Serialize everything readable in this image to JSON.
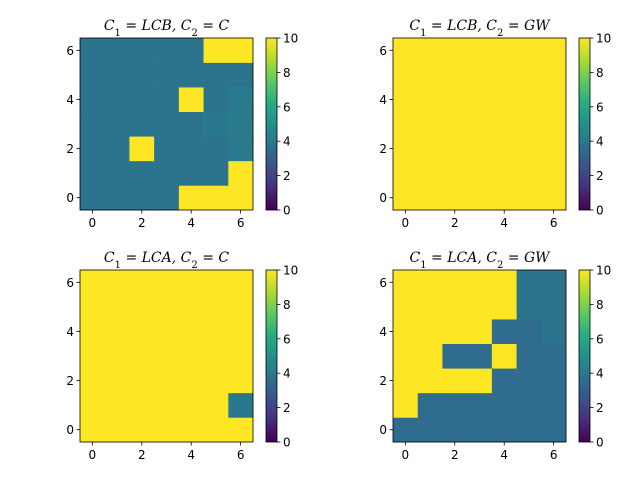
{
  "chart_data": [
    {
      "type": "heatmap",
      "title": "C_1 = LCB, C_2 = C",
      "xticks": [
        0,
        2,
        4,
        6
      ],
      "yticks": [
        0,
        2,
        4,
        6
      ],
      "xlim": [
        -0.5,
        6.5
      ],
      "ylim": [
        -0.5,
        6.5
      ],
      "colorbar": {
        "ticks": [
          0,
          2,
          4,
          6,
          8,
          10
        ],
        "vmin": 0,
        "vmax": 10,
        "colormap": "viridis"
      },
      "grid": false,
      "z_rows_bottom_to_top": [
        [
          3.8,
          3.8,
          3.8,
          3.8,
          10,
          10,
          10
        ],
        [
          3.8,
          3.8,
          3.8,
          3.8,
          3.8,
          3.8,
          10
        ],
        [
          3.8,
          3.8,
          10,
          3.8,
          3.8,
          3.8,
          4.1
        ],
        [
          3.8,
          3.8,
          3.8,
          3.8,
          3.8,
          4.0,
          4.1
        ],
        [
          3.8,
          3.8,
          3.8,
          3.8,
          10,
          3.8,
          4.1
        ],
        [
          3.8,
          3.8,
          3.8,
          3.8,
          3.8,
          3.8,
          3.8
        ],
        [
          3.8,
          3.8,
          3.8,
          3.8,
          3.8,
          10,
          10
        ]
      ]
    },
    {
      "type": "heatmap",
      "title": "C_1 = LCB, C_2 = GW",
      "xticks": [
        0,
        2,
        4,
        6
      ],
      "yticks": [
        0,
        2,
        4,
        6
      ],
      "xlim": [
        -0.5,
        6.5
      ],
      "ylim": [
        -0.5,
        6.5
      ],
      "colorbar": {
        "ticks": [
          0,
          2,
          4,
          6,
          8,
          10
        ],
        "vmin": 0,
        "vmax": 10,
        "colormap": "viridis"
      },
      "grid": false,
      "z_rows_bottom_to_top": [
        [
          10,
          10,
          10,
          10,
          10,
          10,
          10
        ],
        [
          10,
          10,
          10,
          10,
          10,
          10,
          10
        ],
        [
          10,
          10,
          10,
          10,
          10,
          10,
          10
        ],
        [
          10,
          10,
          10,
          10,
          10,
          10,
          10
        ],
        [
          10,
          10,
          10,
          10,
          10,
          10,
          10
        ],
        [
          10,
          10,
          10,
          10,
          10,
          10,
          10
        ],
        [
          10,
          10,
          10,
          10,
          10,
          10,
          10
        ]
      ]
    },
    {
      "type": "heatmap",
      "title": "C_1 = LCA, C_2 = C",
      "xticks": [
        0,
        2,
        4,
        6
      ],
      "yticks": [
        0,
        2,
        4,
        6
      ],
      "xlim": [
        -0.5,
        6.5
      ],
      "ylim": [
        -0.5,
        6.5
      ],
      "colorbar": {
        "ticks": [
          0,
          2,
          4,
          6,
          8,
          10
        ],
        "vmin": 0,
        "vmax": 10,
        "colormap": "viridis"
      },
      "grid": false,
      "z_rows_bottom_to_top": [
        [
          10,
          10,
          10,
          10,
          10,
          10,
          10
        ],
        [
          10,
          10,
          10,
          10,
          10,
          10,
          4.0
        ],
        [
          10,
          10,
          10,
          10,
          10,
          10,
          10
        ],
        [
          10,
          10,
          10,
          10,
          10,
          10,
          10
        ],
        [
          10,
          10,
          10,
          10,
          10,
          10,
          10
        ],
        [
          10,
          10,
          10,
          10,
          10,
          10,
          10
        ],
        [
          10,
          10,
          10,
          10,
          10,
          10,
          10
        ]
      ]
    },
    {
      "type": "heatmap",
      "title": "C_1 = LCA, C_2 = GW",
      "xticks": [
        0,
        2,
        4,
        6
      ],
      "yticks": [
        0,
        2,
        4,
        6
      ],
      "xlim": [
        -0.5,
        6.5
      ],
      "ylim": [
        -0.5,
        6.5
      ],
      "colorbar": {
        "ticks": [
          0,
          2,
          4,
          6,
          8,
          10
        ],
        "vmin": 0,
        "vmax": 10,
        "colormap": "viridis"
      },
      "grid": false,
      "z_rows_bottom_to_top": [
        [
          3.5,
          3.5,
          3.5,
          3.5,
          3.5,
          3.5,
          3.5
        ],
        [
          10,
          3.5,
          3.5,
          3.5,
          3.5,
          3.5,
          3.5
        ],
        [
          10,
          10,
          10,
          10,
          3.5,
          3.5,
          3.5
        ],
        [
          10,
          10,
          3.5,
          3.5,
          10,
          3.5,
          3.5
        ],
        [
          10,
          10,
          10,
          10,
          3.5,
          3.5,
          3.8
        ],
        [
          10,
          10,
          10,
          10,
          10,
          3.8,
          3.8
        ],
        [
          10,
          10,
          10,
          10,
          10,
          3.8,
          3.8
        ]
      ]
    }
  ]
}
